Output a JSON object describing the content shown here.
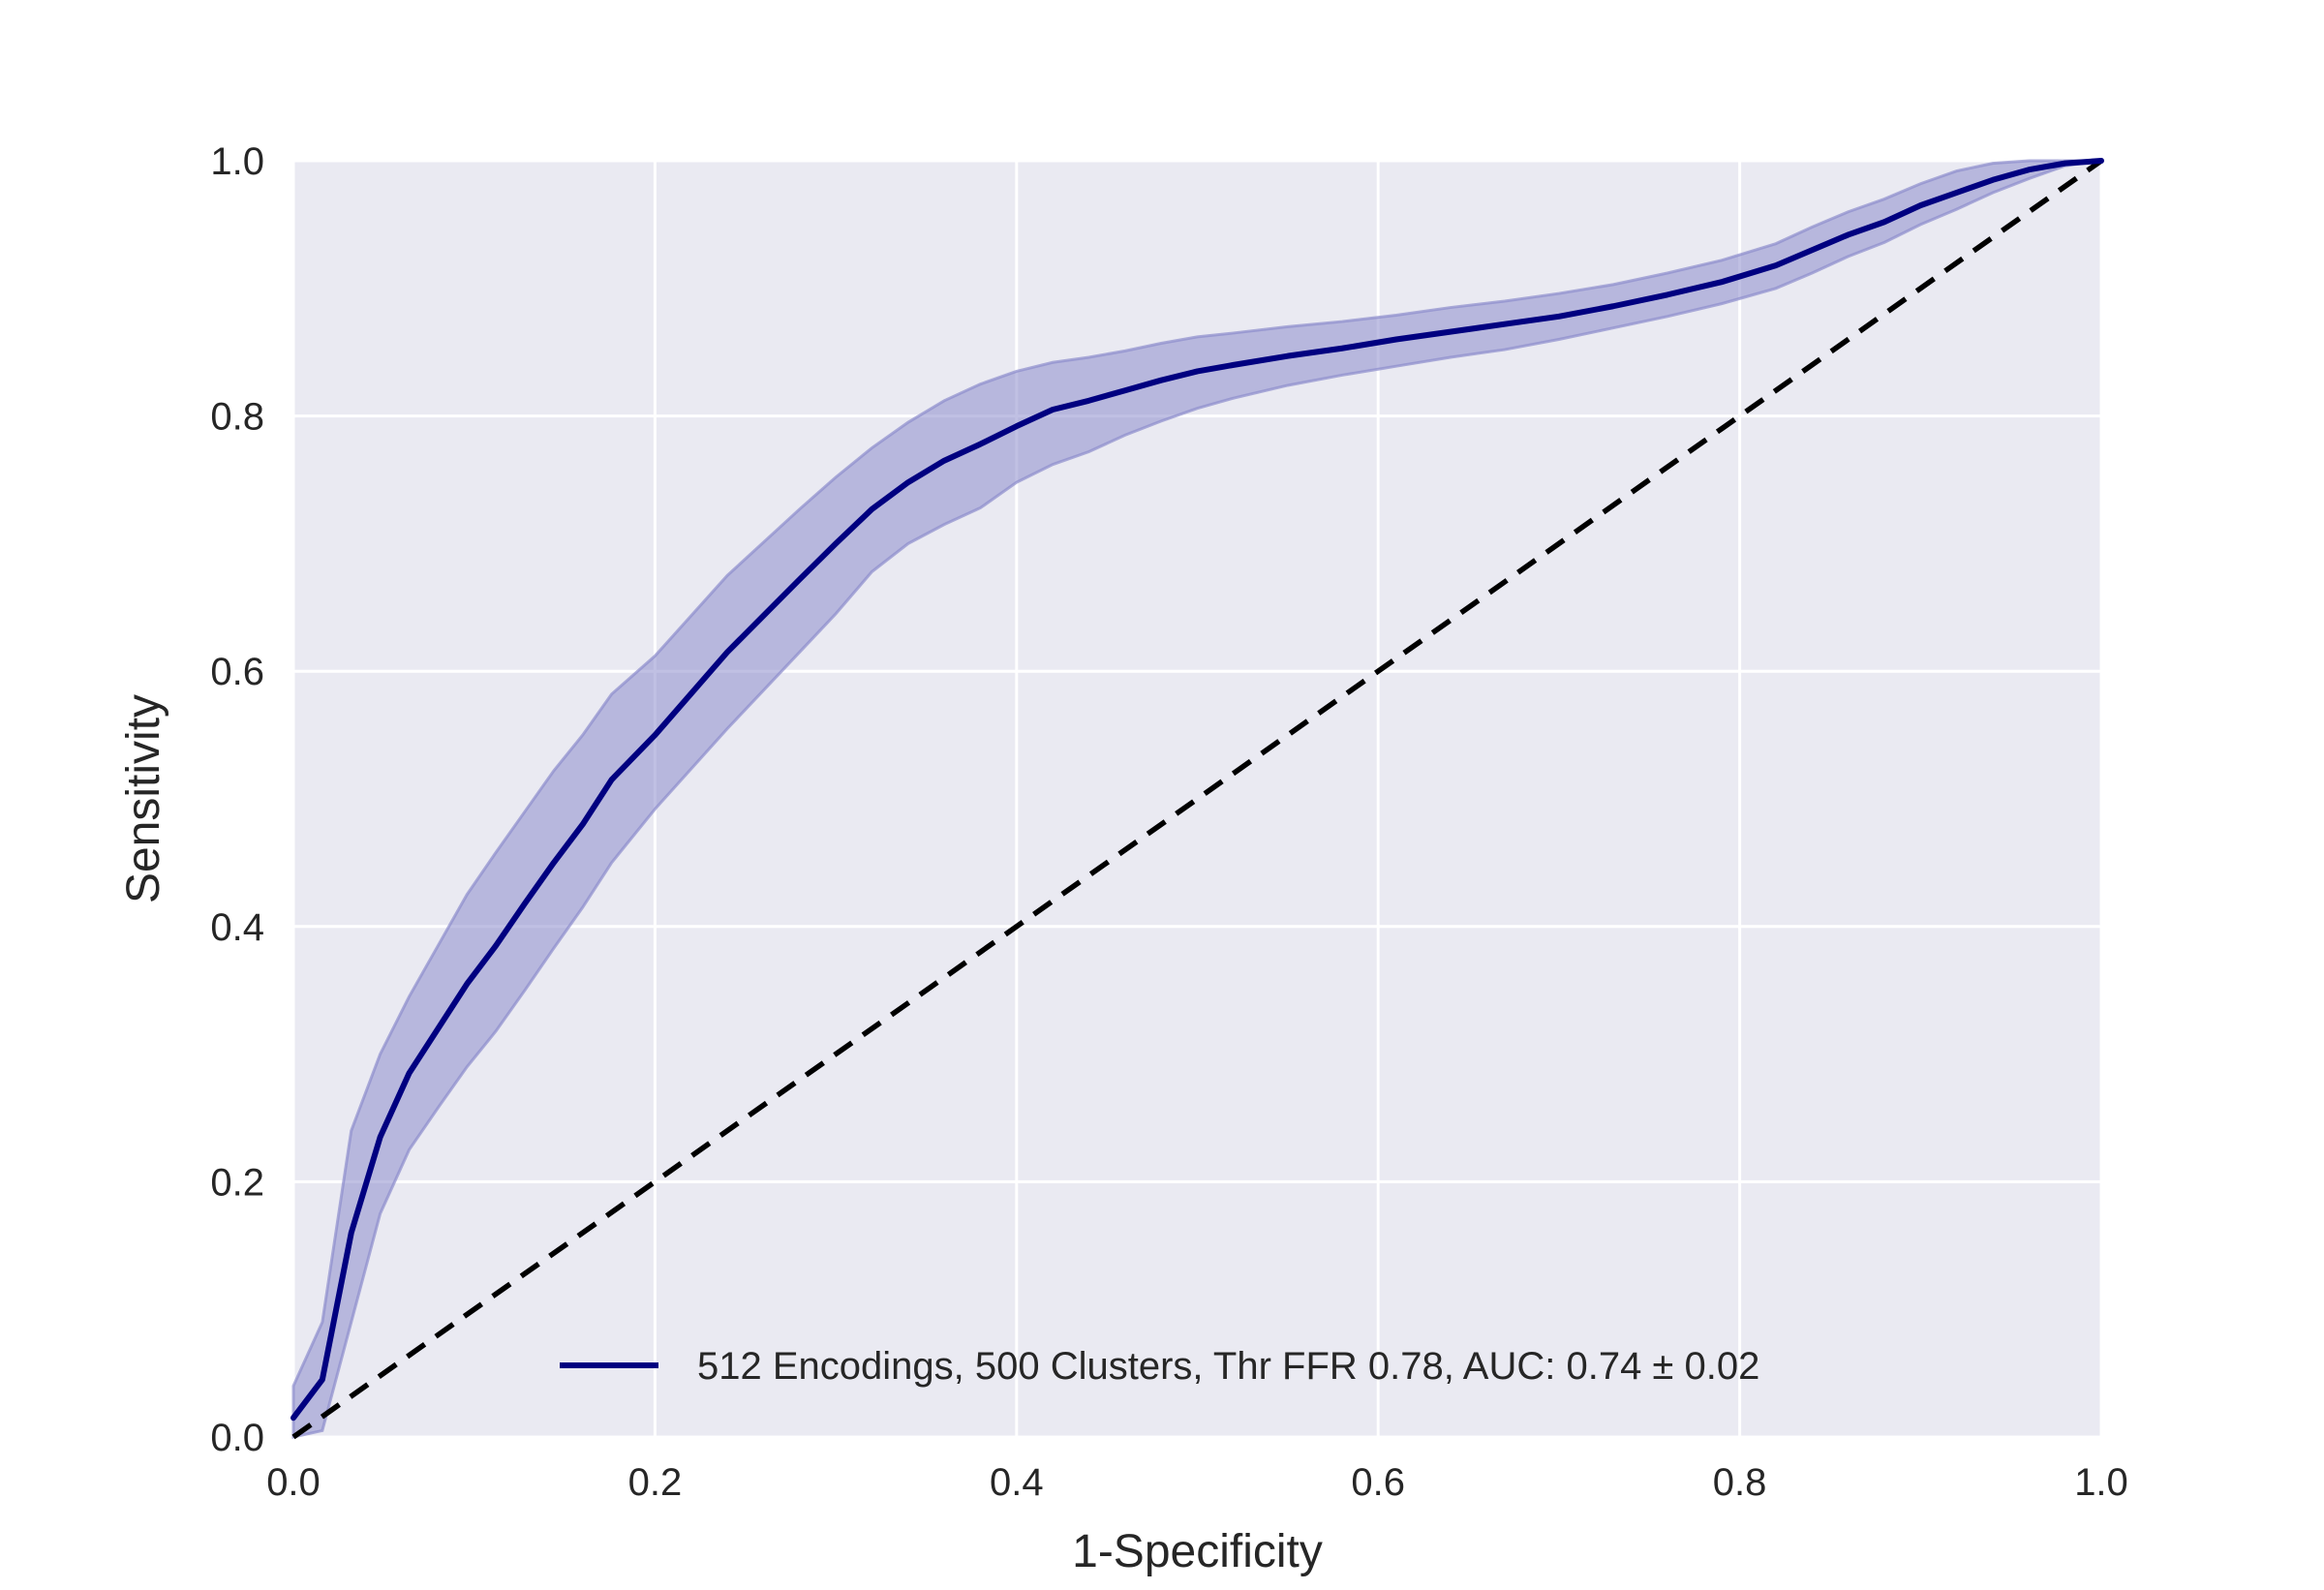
{
  "chart_data": {
    "type": "line",
    "xlabel": "1-Specificity",
    "ylabel": "Sensitivity",
    "xlim": [
      0.0,
      1.0
    ],
    "ylim": [
      0.0,
      1.0
    ],
    "x_ticks": [
      "0.0",
      "0.2",
      "0.4",
      "0.6",
      "0.8",
      "1.0"
    ],
    "y_ticks": [
      "0.0",
      "0.2",
      "0.4",
      "0.6",
      "0.8",
      "1.0"
    ],
    "grid": true,
    "legend_position": "lower-right",
    "colors": {
      "background": "#eaeaf2",
      "grid": "#ffffff",
      "mean_line": "#000080",
      "band": "#8c8ccc",
      "chance_line": "#000000"
    },
    "series": [
      {
        "name": "512 Encodings, 500 Clusters, Thr FFR 0.78,  AUC: 0.74 ± 0.02",
        "x": [
          0.0,
          0.016,
          0.032,
          0.048,
          0.064,
          0.08,
          0.096,
          0.112,
          0.128,
          0.144,
          0.16,
          0.176,
          0.2,
          0.24,
          0.28,
          0.3,
          0.32,
          0.34,
          0.36,
          0.38,
          0.4,
          0.42,
          0.44,
          0.46,
          0.48,
          0.5,
          0.52,
          0.55,
          0.58,
          0.61,
          0.64,
          0.67,
          0.7,
          0.73,
          0.76,
          0.79,
          0.82,
          0.84,
          0.86,
          0.88,
          0.9,
          0.92,
          0.94,
          0.96,
          0.98,
          1.0
        ],
        "y": [
          0.015,
          0.045,
          0.16,
          0.235,
          0.285,
          0.32,
          0.355,
          0.385,
          0.418,
          0.45,
          0.48,
          0.515,
          0.55,
          0.615,
          0.672,
          0.7,
          0.727,
          0.748,
          0.765,
          0.778,
          0.792,
          0.805,
          0.812,
          0.82,
          0.828,
          0.835,
          0.84,
          0.847,
          0.853,
          0.86,
          0.866,
          0.872,
          0.878,
          0.886,
          0.895,
          0.905,
          0.918,
          0.93,
          0.942,
          0.952,
          0.965,
          0.975,
          0.985,
          0.993,
          0.998,
          1.0
        ],
        "y_upper": [
          0.04,
          0.09,
          0.24,
          0.3,
          0.345,
          0.385,
          0.425,
          0.458,
          0.49,
          0.522,
          0.55,
          0.582,
          0.612,
          0.675,
          0.727,
          0.752,
          0.775,
          0.795,
          0.812,
          0.825,
          0.835,
          0.842,
          0.846,
          0.851,
          0.857,
          0.862,
          0.865,
          0.87,
          0.874,
          0.879,
          0.885,
          0.89,
          0.896,
          0.903,
          0.912,
          0.922,
          0.935,
          0.948,
          0.96,
          0.97,
          0.982,
          0.992,
          0.998,
          1.0,
          1.0,
          1.0
        ],
        "y_lower": [
          0.0,
          0.005,
          0.09,
          0.175,
          0.225,
          0.258,
          0.29,
          0.318,
          0.35,
          0.383,
          0.415,
          0.45,
          0.492,
          0.555,
          0.615,
          0.645,
          0.678,
          0.7,
          0.715,
          0.728,
          0.748,
          0.762,
          0.772,
          0.785,
          0.796,
          0.806,
          0.814,
          0.824,
          0.832,
          0.839,
          0.846,
          0.852,
          0.86,
          0.869,
          0.878,
          0.888,
          0.9,
          0.912,
          0.925,
          0.936,
          0.95,
          0.962,
          0.975,
          0.986,
          0.996,
          1.0
        ]
      },
      {
        "x": [
          0.0,
          1.0
        ],
        "y": [
          0.0,
          1.0
        ]
      }
    ]
  }
}
